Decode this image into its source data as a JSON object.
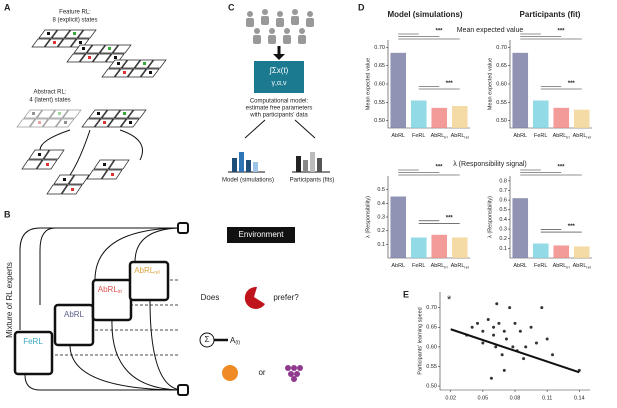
{
  "panel_a": {
    "letter": "A",
    "feature_title": "Feature RL:",
    "feature_sub": "8 (explicit) states",
    "abstract_title": "Abstract RL:",
    "abstract_sub": "4 (latent) states"
  },
  "panel_b": {
    "letter": "B",
    "side_label": "Mixture of RL experts",
    "environment": "Environment",
    "question_pre": "Does",
    "question_post": "prefer?",
    "or": "or",
    "sum": "Σ",
    "action": "A",
    "action_sub": "(t)",
    "experts": [
      {
        "name": "FeRL"
      },
      {
        "name": "AbRL"
      },
      {
        "name": "AbRL",
        "sub": "irr"
      },
      {
        "name": "AbRL",
        "sub": "rel"
      }
    ]
  },
  "panel_c": {
    "letter": "C",
    "formula": "∫Σx(t)",
    "params": "γ,α,ν",
    "caption": [
      "Computational model:",
      "estimate free parameters",
      "with participants' data"
    ],
    "model_label": "Model (simulations)",
    "participants_label": "Participants (fits)"
  },
  "panel_d": {
    "letter": "D",
    "model_title": "Model (simulations)",
    "participants_title": "Participants (fit)",
    "row1_title": "Mean expected value",
    "row2_title": "λ (Responsibility signal)"
  },
  "panel_e": {
    "letter": "E",
    "star": "*"
  },
  "chart_data": [
    {
      "type": "bar",
      "ylabel": "Mean expected value",
      "categories": [
        "AbRL",
        "FeRL",
        "AbRL",
        "AbRL"
      ],
      "category_subscripts": [
        null,
        null,
        "irr",
        "rel"
      ],
      "values": [
        0.685,
        0.555,
        0.535,
        0.54
      ],
      "colors": [
        "#7c80a6",
        "#7fd3e0",
        "#f08a86",
        "#f2d597"
      ],
      "ylim": [
        0.48,
        0.72
      ],
      "yticks": [
        {
          "value": 0.5,
          "label": "0.50"
        },
        {
          "value": 0.55,
          "label": "0.55"
        },
        {
          "value": 0.6,
          "label": "0.60"
        },
        {
          "value": 0.65,
          "label": "0.65"
        },
        {
          "value": 0.7,
          "label": "0.70"
        }
      ],
      "annotations": [
        "***",
        "***"
      ]
    },
    {
      "type": "bar",
      "ylabel": "Mean expected value",
      "categories": [
        "AbRL",
        "FeRL",
        "AbRL",
        "AbRL"
      ],
      "category_subscripts": [
        null,
        null,
        "irr",
        "rel"
      ],
      "values": [
        0.685,
        0.555,
        0.535,
        0.53
      ],
      "colors": [
        "#7c80a6",
        "#7fd3e0",
        "#f08a86",
        "#f2d597"
      ],
      "ylim": [
        0.48,
        0.72
      ],
      "yticks": [
        {
          "value": 0.5,
          "label": "0.50"
        },
        {
          "value": 0.55,
          "label": "0.55"
        },
        {
          "value": 0.6,
          "label": "0.60"
        },
        {
          "value": 0.65,
          "label": "0.65"
        },
        {
          "value": 0.7,
          "label": "0.70"
        }
      ],
      "annotations": [
        "***",
        "***"
      ]
    },
    {
      "type": "bar",
      "ylabel": "λ (Responsibility)",
      "categories": [
        "AbRL",
        "FeRL",
        "AbRL",
        "AbRL"
      ],
      "category_subscripts": [
        null,
        null,
        "irr",
        "rel"
      ],
      "values": [
        0.45,
        0.15,
        0.17,
        0.15
      ],
      "colors": [
        "#7c80a6",
        "#7fd3e0",
        "#f08a86",
        "#f2d597"
      ],
      "ylim": [
        0,
        0.6
      ],
      "yticks": [
        0.1,
        0.2,
        0.3,
        0.4,
        0.5
      ],
      "annotations": [
        "***",
        "***"
      ]
    },
    {
      "type": "bar",
      "ylabel": "λ (Responsibility)",
      "categories": [
        "AbRL",
        "FeRL",
        "AbRL",
        "AbRL"
      ],
      "category_subscripts": [
        null,
        null,
        "irr",
        "rel"
      ],
      "values": [
        0.62,
        0.15,
        0.13,
        0.12
      ],
      "colors": [
        "#7c80a6",
        "#7fd3e0",
        "#f08a86",
        "#f2d597"
      ],
      "ylim": [
        0,
        0.85
      ],
      "yticks": [
        0.1,
        0.2,
        0.3,
        0.4,
        0.5,
        0.6,
        0.7,
        0.8
      ],
      "annotations": [
        "***",
        "***"
      ]
    },
    {
      "type": "scatter",
      "ylabel": "Participants' learning speed",
      "color": "#333333",
      "x": [
        0.035,
        0.04,
        0.045,
        0.05,
        0.05,
        0.055,
        0.06,
        0.06,
        0.062,
        0.065,
        0.068,
        0.07,
        0.072,
        0.075,
        0.078,
        0.08,
        0.082,
        0.085,
        0.088,
        0.09,
        0.095,
        0.1,
        0.105,
        0.11,
        0.115,
        0.058,
        0.07,
        0.14,
        0.063
      ],
      "values": [
        0.63,
        0.65,
        0.66,
        0.64,
        0.61,
        0.67,
        0.65,
        0.63,
        0.6,
        0.66,
        0.58,
        0.64,
        0.62,
        0.7,
        0.6,
        0.66,
        0.59,
        0.64,
        0.57,
        0.6,
        0.65,
        0.61,
        0.7,
        0.62,
        0.58,
        0.52,
        0.54,
        0.54,
        0.71
      ],
      "regression_line": {
        "x": [
          0.02,
          0.14
        ],
        "y": [
          0.645,
          0.535
        ]
      },
      "xlim": [
        0.01,
        0.15
      ],
      "ylim": [
        0.49,
        0.74
      ],
      "xticks": [
        0.02,
        0.05,
        0.08,
        0.11,
        0.14
      ],
      "yticks": [
        {
          "value": 0.5,
          "label": "0.50"
        },
        {
          "value": 0.55,
          "label": "0.55"
        },
        {
          "value": 0.6,
          "label": "0.60"
        },
        {
          "value": 0.65,
          "label": "0.65"
        },
        {
          "value": 0.7,
          "label": "0.70"
        }
      ]
    }
  ]
}
